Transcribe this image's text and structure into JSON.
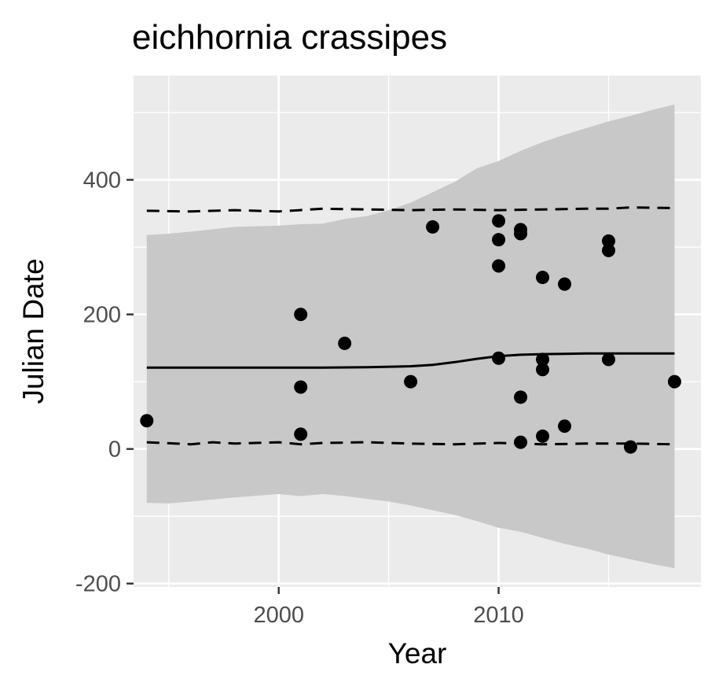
{
  "chart_data": {
    "type": "scatter",
    "title": "eichhornia crassipes",
    "xlabel": "Year",
    "ylabel": "Julian Date",
    "xlim": [
      1993.4,
      2019.2
    ],
    "ylim": [
      -205,
      555
    ],
    "x_ticks": [
      2000,
      2010
    ],
    "x_tick_labels": [
      "2000",
      "2010"
    ],
    "y_ticks": [
      -200,
      0,
      200,
      400
    ],
    "y_tick_labels": [
      "-200",
      "0",
      "200",
      "400"
    ],
    "grid": true,
    "legend": "none",
    "colors": {
      "panel_background": "#ebebeb",
      "grid": "#ffffff",
      "points": "#000000",
      "ribbon": "#c8c8c8",
      "lines": "#000000"
    },
    "points": [
      {
        "x": 1994,
        "y": 42
      },
      {
        "x": 2001,
        "y": 200
      },
      {
        "x": 2001,
        "y": 92
      },
      {
        "x": 2001,
        "y": 22
      },
      {
        "x": 2003,
        "y": 157
      },
      {
        "x": 2006,
        "y": 100
      },
      {
        "x": 2007,
        "y": 330
      },
      {
        "x": 2010,
        "y": 339
      },
      {
        "x": 2010,
        "y": 311
      },
      {
        "x": 2010,
        "y": 272
      },
      {
        "x": 2010,
        "y": 135
      },
      {
        "x": 2011,
        "y": 326
      },
      {
        "x": 2011,
        "y": 320
      },
      {
        "x": 2011,
        "y": 77
      },
      {
        "x": 2011,
        "y": 10
      },
      {
        "x": 2012,
        "y": 255
      },
      {
        "x": 2012,
        "y": 133
      },
      {
        "x": 2012,
        "y": 118
      },
      {
        "x": 2012,
        "y": 19
      },
      {
        "x": 2013,
        "y": 245
      },
      {
        "x": 2013,
        "y": 34
      },
      {
        "x": 2015,
        "y": 309
      },
      {
        "x": 2015,
        "y": 295
      },
      {
        "x": 2015,
        "y": 133
      },
      {
        "x": 2016,
        "y": 3
      },
      {
        "x": 2018,
        "y": 100
      }
    ],
    "median_line": {
      "x": [
        1994,
        1996,
        1998,
        2000,
        2002,
        2004,
        2006,
        2007,
        2008,
        2009,
        2010,
        2011,
        2012,
        2013,
        2014,
        2016,
        2018
      ],
      "y": [
        121,
        121,
        121,
        121,
        121,
        121.5,
        123,
        125,
        129,
        134,
        138,
        140,
        141,
        141.5,
        142,
        142,
        142
      ]
    },
    "upper_dashed": {
      "x": [
        1994,
        1996,
        1998,
        2000,
        2002,
        2004,
        2006,
        2008,
        2010,
        2012,
        2014,
        2015,
        2016,
        2018
      ],
      "y": [
        354,
        353,
        355,
        353,
        357,
        356,
        355,
        356,
        355,
        356,
        357,
        357,
        359,
        358
      ]
    },
    "lower_dashed": {
      "x": [
        1994,
        1996,
        1997,
        1998,
        2000,
        2001,
        2002,
        2004,
        2006,
        2008,
        2010,
        2011,
        2012,
        2014,
        2016,
        2018
      ],
      "y": [
        10,
        7,
        10,
        8,
        10,
        7,
        9,
        10,
        8,
        7,
        9,
        8,
        7,
        8,
        8,
        7
      ]
    },
    "ribbon": {
      "x": [
        1994,
        1995,
        1996,
        1998,
        2000,
        2001,
        2002,
        2003,
        2004,
        2005,
        2006,
        2008,
        2009,
        2010,
        2011,
        2012,
        2013,
        2014,
        2015,
        2016,
        2017,
        2018
      ],
      "upper": [
        318,
        320,
        323,
        330,
        332,
        334,
        335,
        342,
        346,
        355,
        366,
        397,
        417,
        428,
        443,
        456,
        467,
        477,
        487,
        495,
        504,
        512
      ],
      "lower": [
        -80,
        -81,
        -78,
        -72,
        -67,
        -70,
        -67,
        -70,
        -74,
        -78,
        -84,
        -98,
        -107,
        -117,
        -123,
        -132,
        -141,
        -148,
        -157,
        -164,
        -171,
        -177
      ]
    }
  }
}
